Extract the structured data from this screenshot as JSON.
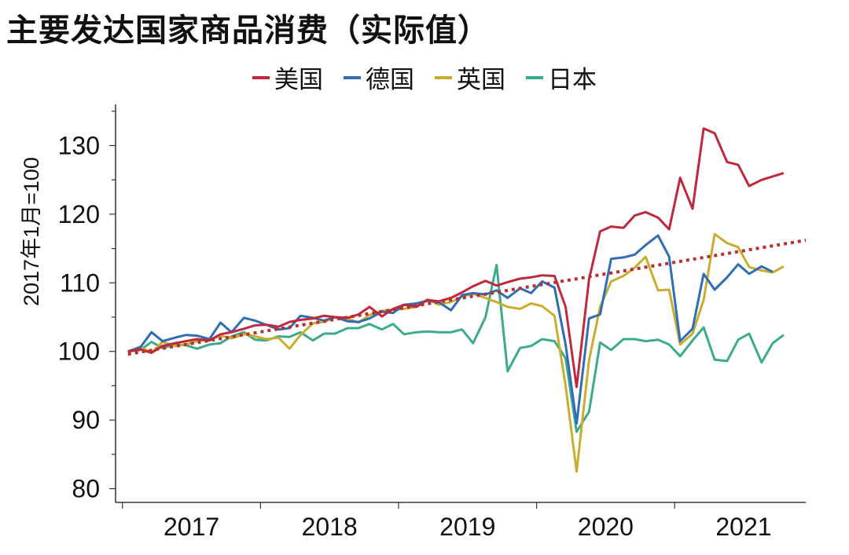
{
  "chart_data": {
    "type": "line",
    "title": "主要发达国家商品消费（实际值）",
    "ylabel": "2017年1月=100",
    "xlabel": "",
    "ylim": [
      78,
      136
    ],
    "y_ticks": [
      80,
      90,
      100,
      110,
      120,
      130
    ],
    "x_range": [
      2016.95,
      2021.95
    ],
    "x_tick_labels": [
      "2017",
      "2018",
      "2019",
      "2020",
      "2021"
    ],
    "legend_position": "top-center",
    "series": [
      {
        "name": "美国",
        "color": "#c0283c",
        "x": [
          2017.04,
          2017.13,
          2017.21,
          2017.29,
          2017.38,
          2017.46,
          2017.54,
          2017.63,
          2017.71,
          2017.79,
          2017.88,
          2017.96,
          2018.04,
          2018.13,
          2018.21,
          2018.29,
          2018.38,
          2018.46,
          2018.54,
          2018.63,
          2018.71,
          2018.79,
          2018.88,
          2018.96,
          2019.04,
          2019.13,
          2019.21,
          2019.29,
          2019.38,
          2019.46,
          2019.54,
          2019.63,
          2019.71,
          2019.79,
          2019.88,
          2019.96,
          2020.04,
          2020.13,
          2020.21,
          2020.29,
          2020.38,
          2020.46,
          2020.54,
          2020.63,
          2020.71,
          2020.79,
          2020.88,
          2020.96,
          2021.04,
          2021.13,
          2021.21,
          2021.29,
          2021.38,
          2021.46,
          2021.54,
          2021.63,
          2021.71,
          2021.79
        ],
        "values": [
          100,
          100.3,
          99.8,
          100.8,
          101.2,
          101.5,
          101.8,
          101.6,
          102.5,
          102.8,
          103.3,
          103.8,
          103.9,
          103.6,
          104.3,
          104.6,
          104.8,
          105.2,
          105.0,
          104.9,
          105.4,
          106.5,
          105.1,
          106.2,
          106.8,
          106.5,
          107.5,
          107.3,
          107.8,
          108.6,
          109.5,
          110.3,
          109.6,
          110.1,
          110.6,
          110.8,
          111.1,
          111.0,
          106.5,
          94.8,
          110.5,
          117.5,
          118.2,
          118.0,
          119.8,
          120.3,
          119.5,
          117.8,
          125.3,
          120.8,
          132.5,
          131.8,
          127.6,
          127.2,
          124.1,
          125.0,
          125.5,
          126.0
        ]
      },
      {
        "name": "德国",
        "color": "#2f6db5",
        "x": [
          2017.04,
          2017.13,
          2017.21,
          2017.29,
          2017.38,
          2017.46,
          2017.54,
          2017.63,
          2017.71,
          2017.79,
          2017.88,
          2017.96,
          2018.04,
          2018.13,
          2018.21,
          2018.29,
          2018.38,
          2018.46,
          2018.54,
          2018.63,
          2018.71,
          2018.79,
          2018.88,
          2018.96,
          2019.04,
          2019.13,
          2019.21,
          2019.29,
          2019.38,
          2019.46,
          2019.54,
          2019.63,
          2019.71,
          2019.79,
          2019.88,
          2019.96,
          2020.04,
          2020.13,
          2020.21,
          2020.29,
          2020.38,
          2020.46,
          2020.54,
          2020.63,
          2020.71,
          2020.79,
          2020.88,
          2020.96,
          2021.04,
          2021.13,
          2021.21,
          2021.29,
          2021.38,
          2021.46,
          2021.54,
          2021.63,
          2021.71,
          2021.79
        ],
        "values": [
          100,
          100.6,
          102.8,
          101.5,
          102.0,
          102.4,
          102.3,
          101.8,
          104.2,
          102.8,
          104.9,
          104.5,
          103.9,
          103.2,
          103.4,
          105.2,
          104.9,
          104.5,
          105.0,
          104.4,
          104.3,
          104.8,
          105.8,
          105.6,
          106.8,
          107.0,
          107.4,
          107.2,
          106.0,
          108.2,
          108.5,
          108.3,
          108.9,
          107.8,
          109.2,
          108.5,
          110.2,
          109.3,
          101.0,
          89.5,
          104.8,
          105.4,
          113.5,
          113.7,
          114.1,
          115.5,
          116.9,
          113.8,
          101.5,
          103.3,
          111.3,
          109.0,
          110.8,
          112.7,
          111.3,
          112.4,
          111.6,
          null
        ]
      },
      {
        "name": "英国",
        "color": "#c9ad2e",
        "x": [
          2017.04,
          2017.13,
          2017.21,
          2017.29,
          2017.38,
          2017.46,
          2017.54,
          2017.63,
          2017.71,
          2017.79,
          2017.88,
          2017.96,
          2018.04,
          2018.13,
          2018.21,
          2018.29,
          2018.38,
          2018.46,
          2018.54,
          2018.63,
          2018.71,
          2018.79,
          2018.88,
          2018.96,
          2019.04,
          2019.13,
          2019.21,
          2019.29,
          2019.38,
          2019.46,
          2019.54,
          2019.63,
          2019.71,
          2019.79,
          2019.88,
          2019.96,
          2020.04,
          2020.13,
          2020.21,
          2020.29,
          2020.38,
          2020.46,
          2020.54,
          2020.63,
          2020.71,
          2020.79,
          2020.88,
          2020.96,
          2021.04,
          2021.13,
          2021.21,
          2021.29,
          2021.38,
          2021.46,
          2021.54,
          2021.63,
          2021.71,
          2021.79
        ],
        "values": [
          100,
          100.7,
          99.8,
          101.4,
          100.8,
          101.0,
          101.5,
          101.7,
          102.3,
          101.9,
          102.5,
          102.2,
          101.8,
          102.0,
          100.4,
          102.4,
          104.1,
          104.3,
          105.0,
          104.8,
          104.2,
          105.3,
          105.9,
          106.1,
          106.2,
          106.5,
          107.6,
          106.8,
          107.2,
          108.0,
          108.4,
          107.8,
          107.2,
          106.5,
          106.2,
          107.0,
          106.6,
          105.2,
          95.0,
          82.5,
          98.7,
          106.5,
          110.2,
          111.0,
          112.2,
          113.8,
          108.9,
          109.0,
          101.0,
          102.6,
          107.5,
          117.1,
          115.8,
          115.2,
          112.3,
          111.8,
          111.5,
          112.4
        ]
      },
      {
        "name": "日本",
        "color": "#3aab8c",
        "x": [
          2017.04,
          2017.13,
          2017.21,
          2017.29,
          2017.38,
          2017.46,
          2017.54,
          2017.63,
          2017.71,
          2017.79,
          2017.88,
          2017.96,
          2018.04,
          2018.13,
          2018.21,
          2018.29,
          2018.38,
          2018.46,
          2018.54,
          2018.63,
          2018.71,
          2018.79,
          2018.88,
          2018.96,
          2019.04,
          2019.13,
          2019.21,
          2019.29,
          2019.38,
          2019.46,
          2019.54,
          2019.63,
          2019.71,
          2019.79,
          2019.88,
          2019.96,
          2020.04,
          2020.13,
          2020.21,
          2020.29,
          2020.38,
          2020.46,
          2020.54,
          2020.63,
          2020.71,
          2020.79,
          2020.88,
          2020.96,
          2021.04,
          2021.13,
          2021.21,
          2021.29,
          2021.38,
          2021.46,
          2021.54,
          2021.63,
          2021.71,
          2021.79
        ],
        "values": [
          100,
          100.2,
          101.4,
          100.5,
          101.0,
          100.9,
          100.4,
          101.0,
          101.2,
          102.2,
          102.8,
          101.7,
          101.6,
          102.2,
          102.1,
          102.8,
          101.6,
          102.6,
          102.6,
          103.4,
          103.4,
          104.0,
          103.2,
          104.0,
          102.5,
          102.8,
          102.9,
          102.8,
          102.8,
          103.2,
          101.2,
          105.0,
          112.6,
          97.1,
          100.5,
          100.8,
          101.8,
          101.5,
          99.0,
          88.3,
          91.2,
          101.3,
          100.2,
          101.8,
          101.8,
          101.5,
          101.7,
          101.0,
          99.3,
          101.6,
          103.5,
          98.8,
          98.6,
          101.7,
          102.6,
          98.4,
          101.2,
          102.4
        ]
      }
    ],
    "trend_line": {
      "color": "#b5302f",
      "style": "dotted",
      "x": [
        2017.04,
        2021.95
      ],
      "values": [
        99.6,
        116.2
      ]
    }
  }
}
